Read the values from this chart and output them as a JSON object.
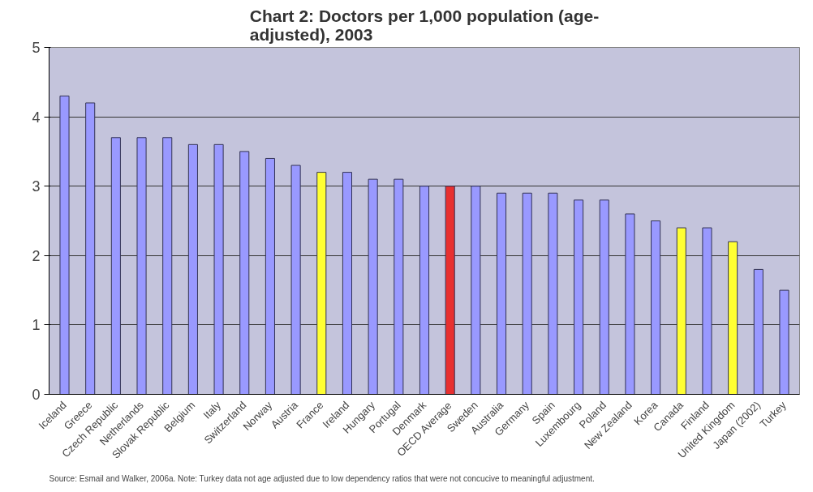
{
  "chart_data": {
    "type": "bar",
    "title": "Chart 2: Doctors per 1,000 population (age-adjusted), 2003",
    "categories": [
      "Iceland",
      "Greece",
      "Czech Republic",
      "Netherlands",
      "Slovak Republic",
      "Belgium",
      "Italy",
      "Switzerland",
      "Norway",
      "Austria",
      "France",
      "Ireland",
      "Hungary",
      "Portugal",
      "Denmark",
      "OECD Average",
      "Sweden",
      "Australia",
      "Germany",
      "Spain",
      "Luxembourg",
      "Poland",
      "New Zealand",
      "Korea",
      "Canada",
      "Finland",
      "United Kingdom",
      "Japan (2002)",
      "Turkey"
    ],
    "values": [
      4.3,
      4.2,
      3.7,
      3.7,
      3.7,
      3.6,
      3.6,
      3.5,
      3.4,
      3.3,
      3.2,
      3.2,
      3.1,
      3.1,
      3.0,
      3.0,
      3.0,
      2.9,
      2.9,
      2.9,
      2.8,
      2.8,
      2.6,
      2.5,
      2.4,
      2.4,
      2.2,
      1.8,
      1.5
    ],
    "colors": [
      "#9999ff",
      "#9999ff",
      "#9999ff",
      "#9999ff",
      "#9999ff",
      "#9999ff",
      "#9999ff",
      "#9999ff",
      "#9999ff",
      "#9999ff",
      "#ffff33",
      "#9999ff",
      "#9999ff",
      "#9999ff",
      "#9999ff",
      "#e83030",
      "#9999ff",
      "#9999ff",
      "#9999ff",
      "#9999ff",
      "#9999ff",
      "#9999ff",
      "#9999ff",
      "#9999ff",
      "#ffff33",
      "#9999ff",
      "#ffff33",
      "#9999ff",
      "#9999ff"
    ],
    "ylim": [
      0,
      5
    ],
    "yticks": [
      0,
      1,
      2,
      3,
      4,
      5
    ],
    "grid": "y",
    "annotations": [
      "Source: Esmail and Walker, 2006a. Note: Turkey data not age adjusted due to low dependency ratios that were not concucive to meaningful adjustment."
    ]
  }
}
